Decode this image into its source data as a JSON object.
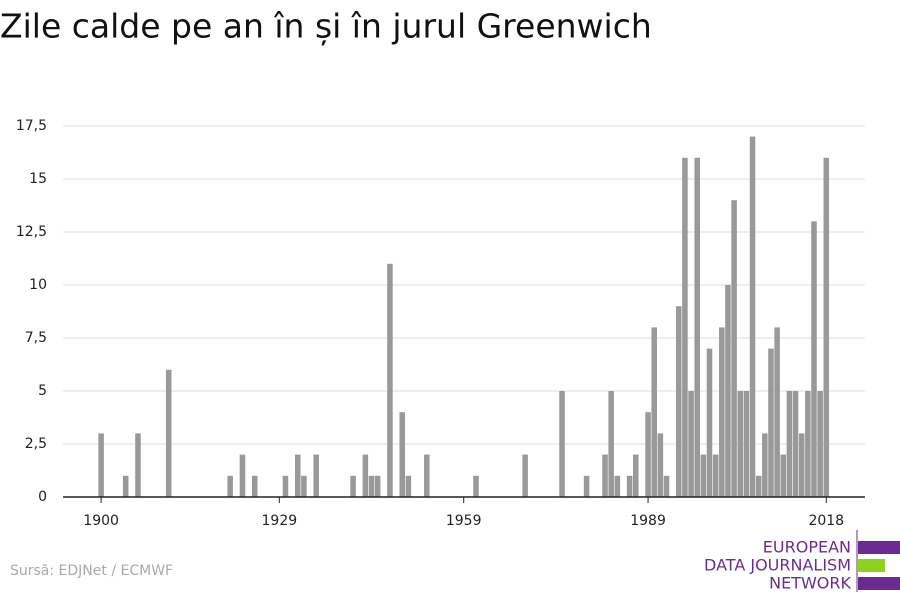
{
  "chart_data": {
    "type": "bar",
    "title": "Zile calde pe an în și în jurul Greenwich",
    "source": "Sursă: EDJNet / ECMWF",
    "logo": [
      "EUROPEAN",
      "DATA JOURNALISM",
      "NETWORK"
    ],
    "color": "#999999",
    "x": [
      1900,
      1904,
      1906,
      1911,
      1921,
      1923,
      1925,
      1930,
      1932,
      1933,
      1935,
      1941,
      1943,
      1944,
      1945,
      1947,
      1949,
      1950,
      1953,
      1961,
      1969,
      1975,
      1979,
      1982,
      1983,
      1984,
      1986,
      1987,
      1989,
      1990,
      1991,
      1992,
      1994,
      1995,
      1996,
      1997,
      1998,
      1999,
      2000,
      2001,
      2002,
      2003,
      2004,
      2005,
      2006,
      2007,
      2008,
      2009,
      2010,
      2011,
      2012,
      2013,
      2014,
      2015,
      2016,
      2017,
      2018
    ],
    "values": [
      3,
      1,
      3,
      6,
      1,
      2,
      1,
      1,
      2,
      1,
      2,
      1,
      2,
      1,
      1,
      11,
      4,
      1,
      2,
      1,
      2,
      5,
      1,
      2,
      5,
      1,
      1,
      2,
      4,
      8,
      3,
      1,
      9,
      16,
      5,
      16,
      2,
      7,
      2,
      8,
      10,
      14,
      5,
      5,
      17,
      1,
      3,
      7,
      8,
      2,
      5,
      5,
      3,
      5,
      13,
      5,
      16
    ],
    "xlim": [
      1893.8,
      2024.3
    ],
    "xticks": [
      1900,
      1929,
      1959,
      1989,
      2018
    ],
    "ylim": [
      0,
      17.5
    ],
    "yticks": [
      0,
      {
        "value": 2.5,
        "label": "2,5"
      },
      5,
      {
        "value": 7.5,
        "label": "7,5"
      },
      10,
      {
        "value": 12.5,
        "label": "12,5"
      },
      15,
      {
        "value": 17.5,
        "label": "17,5"
      }
    ],
    "grid": true
  }
}
